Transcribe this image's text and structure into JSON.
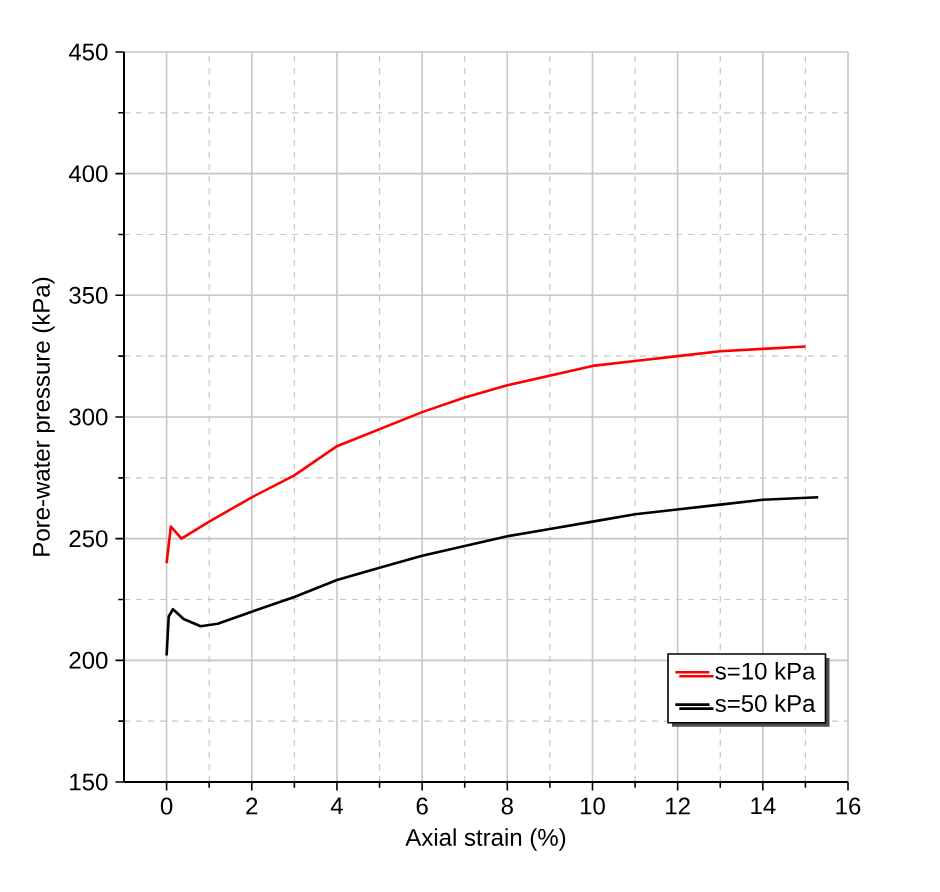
{
  "chart_data": {
    "type": "line",
    "xlabel": "Axial strain (%)",
    "ylabel": "Pore-water pressure (kPa)",
    "xlim": [
      -1,
      16
    ],
    "ylim": [
      150,
      450
    ],
    "xticks": [
      0,
      2,
      4,
      6,
      8,
      10,
      12,
      14,
      16
    ],
    "yticks": [
      150,
      200,
      250,
      300,
      350,
      400,
      450
    ],
    "grid": true,
    "legend": "bottom right",
    "marker": "none",
    "line_style": "solid",
    "series": [
      {
        "name": "s=10 kPa",
        "color": "#ff0000",
        "x": [
          0,
          0.1,
          0.2,
          0.35,
          1,
          2,
          3,
          4,
          5,
          6,
          7,
          8,
          9,
          10,
          11,
          12,
          13,
          14,
          15
        ],
        "values": [
          240,
          255,
          253,
          250,
          257,
          267,
          276,
          288,
          295,
          302,
          308,
          313,
          317,
          321,
          323,
          325,
          327,
          328,
          329
        ]
      },
      {
        "name": "s=50 kPa",
        "color": "#000000",
        "x": [
          0,
          0.05,
          0.15,
          0.4,
          0.8,
          1.2,
          2,
          3,
          4,
          5,
          6,
          7,
          8,
          9,
          10,
          11,
          12,
          13,
          14,
          15.3
        ],
        "values": [
          202,
          218,
          221,
          217,
          214,
          215,
          220,
          226,
          233,
          238,
          243,
          247,
          251,
          254,
          257,
          260,
          262,
          264,
          266,
          267
        ]
      }
    ]
  }
}
